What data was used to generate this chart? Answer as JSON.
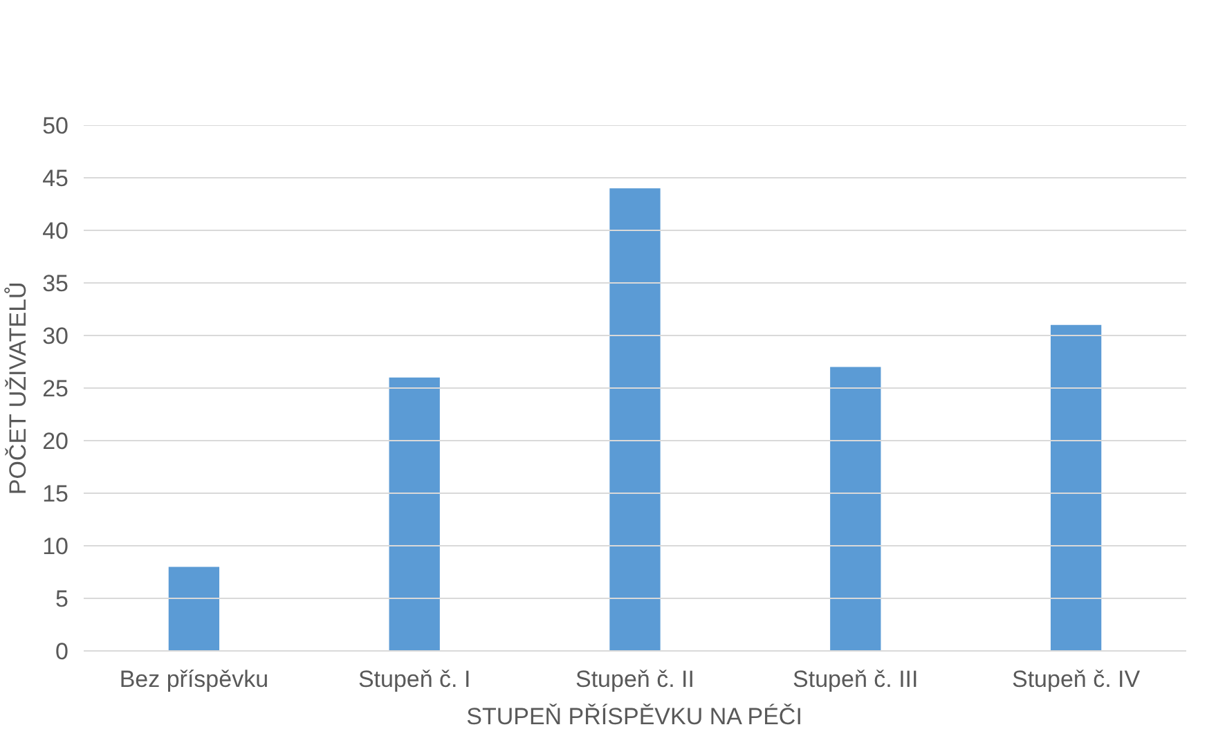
{
  "chart_data": {
    "type": "bar",
    "xlabel": "STUPEŇ PŘÍSPĚVKU NA PÉČI",
    "ylabel": "POČET UŽIVATELŮ",
    "categories": [
      "Bez příspěvku",
      "Stupeň č. I",
      "Stupeň č. II",
      "Stupeň č. III",
      "Stupeň č. IV"
    ],
    "values": [
      8,
      26,
      44,
      27,
      31
    ],
    "color": "#5b9bd5",
    "ylim": [
      0,
      50
    ],
    "yticks": [
      0,
      5,
      10,
      15,
      20,
      25,
      30,
      35,
      40,
      45,
      50
    ],
    "grid": "y"
  }
}
